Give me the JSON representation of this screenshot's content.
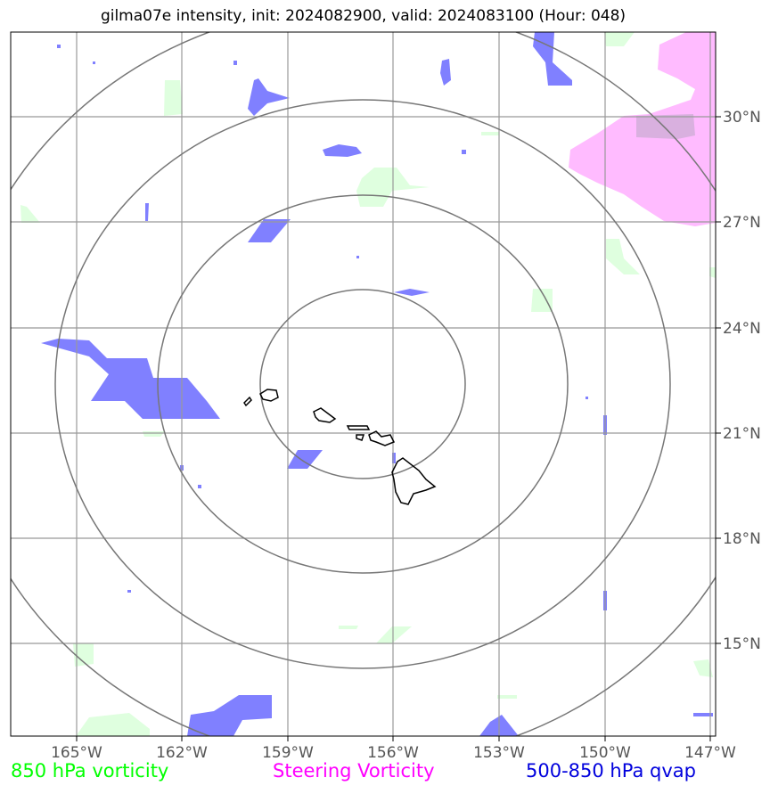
{
  "title": "gilma07e intensity, init: 2024082900, valid: 2024083100 (Hour: 048)",
  "legend": [
    {
      "label": "850 hPa vorticity",
      "color": "#00ff00"
    },
    {
      "label": "Steering Vorticity",
      "color": "#ff00ff"
    },
    {
      "label": "500-850 hPa qvap",
      "color": "#0000dd"
    }
  ],
  "map": {
    "lon_ticks": [
      "165°W",
      "162°W",
      "159°W",
      "156°W",
      "153°W",
      "150°W",
      "147°W"
    ],
    "lat_ticks": [
      "30°N",
      "27°N",
      "24°N",
      "21°N",
      "18°N",
      "15°N"
    ],
    "range_rings": 4,
    "fills": {
      "vorticity_850": "#dfffdf",
      "steering_vorticity": "#ffbbff",
      "qvap": "#8080ff"
    }
  }
}
